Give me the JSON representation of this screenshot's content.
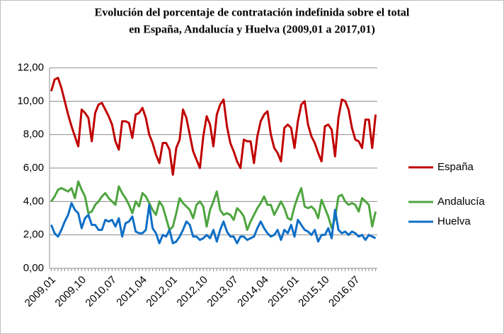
{
  "chart_data": {
    "type": "line",
    "title": [
      "Evolución del porcentaje de contratación indefinida sobre el total",
      "en España, Andalucía y Huelva  (2009,01 a 2017,01)"
    ],
    "categories": [
      "2009,01",
      null,
      null,
      null,
      null,
      null,
      null,
      null,
      null,
      "2009,10",
      null,
      null,
      null,
      null,
      null,
      null,
      null,
      null,
      "2010,07",
      null,
      null,
      null,
      null,
      null,
      null,
      null,
      null,
      "2011,04",
      null,
      null,
      null,
      null,
      null,
      null,
      null,
      null,
      "2012,01",
      null,
      null,
      null,
      null,
      null,
      null,
      null,
      null,
      "2012,10",
      null,
      null,
      null,
      null,
      null,
      null,
      null,
      null,
      "2013,07",
      null,
      null,
      null,
      null,
      null,
      null,
      null,
      null,
      "2014,04",
      null,
      null,
      null,
      null,
      null,
      null,
      null,
      null,
      "2015,01",
      null,
      null,
      null,
      null,
      null,
      null,
      null,
      null,
      "2015,10",
      null,
      null,
      null,
      null,
      null,
      null,
      null,
      null,
      "2016,07",
      null,
      null,
      null,
      null,
      null,
      null
    ],
    "series": [
      {
        "name": "España",
        "color": "#c00000",
        "values": [
          10.6,
          11.3,
          11.4,
          10.8,
          10.0,
          9.2,
          8.5,
          7.9,
          7.3,
          9.5,
          9.3,
          9.0,
          7.6,
          9.3,
          9.8,
          9.9,
          9.5,
          9.1,
          8.6,
          7.6,
          7.1,
          8.8,
          8.8,
          8.7,
          7.8,
          9.2,
          9.3,
          9.6,
          9.0,
          8.0,
          7.5,
          6.8,
          6.3,
          7.5,
          7.5,
          7.1,
          5.6,
          7.2,
          7.7,
          9.5,
          9.0,
          8.0,
          7.0,
          6.5,
          6.0,
          7.9,
          9.1,
          8.6,
          7.3,
          9.2,
          9.8,
          10.1,
          8.5,
          7.5,
          7.0,
          6.4,
          6.0,
          7.7,
          7.6,
          7.6,
          6.3,
          7.9,
          8.8,
          9.2,
          9.4,
          8.0,
          7.2,
          6.9,
          6.4,
          8.4,
          8.6,
          8.4,
          7.2,
          8.8,
          9.8,
          10.0,
          8.6,
          7.9,
          7.5,
          6.9,
          6.4,
          8.5,
          8.6,
          8.3,
          6.7,
          9.0,
          10.1,
          10.0,
          9.5,
          8.4,
          7.7,
          7.6,
          7.2,
          8.9,
          8.9,
          7.2,
          9.2
        ]
      },
      {
        "name": "Andalucía",
        "color": "#4ea53f",
        "values": [
          4.0,
          4.3,
          4.7,
          4.8,
          4.7,
          4.6,
          4.8,
          4.2,
          5.2,
          4.7,
          4.3,
          3.3,
          3.4,
          3.8,
          4.0,
          4.3,
          4.5,
          4.2,
          4.0,
          3.8,
          4.9,
          4.5,
          4.2,
          3.8,
          3.3,
          4.0,
          3.7,
          4.5,
          4.3,
          3.9,
          3.5,
          3.2,
          4.0,
          3.7,
          3.0,
          2.3,
          2.5,
          3.3,
          4.2,
          3.9,
          3.7,
          3.5,
          3.0,
          3.8,
          4.0,
          3.7,
          2.5,
          3.5,
          4.0,
          4.6,
          3.5,
          3.2,
          3.3,
          3.2,
          2.9,
          3.6,
          3.4,
          3.1,
          2.3,
          2.8,
          3.2,
          3.6,
          3.9,
          4.3,
          3.8,
          3.8,
          3.2,
          3.6,
          4.0,
          3.6,
          3.0,
          2.9,
          3.7,
          4.3,
          4.8,
          3.7,
          3.6,
          3.7,
          3.5,
          3.0,
          4.1,
          3.6,
          3.1,
          2.4,
          3.0,
          4.3,
          4.4,
          4.0,
          3.8,
          3.9,
          3.8,
          3.4,
          4.2,
          4.0,
          3.8,
          2.5,
          3.4
        ]
      },
      {
        "name": "Huelva",
        "color": "#0f6fc6",
        "values": [
          2.6,
          2.1,
          1.9,
          2.3,
          2.8,
          3.2,
          3.9,
          3.5,
          3.3,
          2.4,
          3.0,
          3.2,
          2.6,
          2.6,
          2.3,
          2.3,
          2.9,
          2.8,
          2.9,
          2.5,
          3.0,
          1.9,
          2.7,
          2.8,
          3.1,
          2.2,
          2.1,
          2.1,
          2.3,
          3.8,
          2.4,
          2.1,
          1.5,
          2.0,
          1.9,
          2.3,
          1.5,
          1.6,
          1.9,
          2.3,
          2.8,
          2.6,
          1.9,
          1.9,
          1.7,
          1.8,
          2.0,
          1.8,
          2.3,
          1.6,
          2.3,
          2.8,
          2.2,
          1.9,
          1.9,
          1.5,
          1.9,
          1.9,
          1.7,
          1.8,
          1.9,
          2.4,
          2.8,
          2.4,
          2.1,
          1.9,
          2.0,
          2.3,
          1.7,
          2.3,
          2.1,
          2.6,
          1.9,
          2.9,
          2.6,
          2.3,
          2.2,
          2.0,
          2.3,
          1.6,
          2.0,
          2.0,
          2.4,
          1.8,
          3.5,
          2.3,
          2.1,
          2.2,
          2.0,
          2.2,
          2.1,
          1.9,
          2.0,
          1.7,
          2.0,
          1.9,
          1.8
        ]
      }
    ],
    "ylim": [
      0,
      12
    ],
    "yticks": [
      {
        "value": 0,
        "label": "0,00"
      },
      {
        "value": 2,
        "label": "2,00"
      },
      {
        "value": 4,
        "label": "4,00"
      },
      {
        "value": 6,
        "label": "6,00"
      },
      {
        "value": 8,
        "label": "8,00"
      },
      {
        "value": 10,
        "label": "10,00"
      },
      {
        "value": 12,
        "label": "12,00"
      }
    ],
    "grid": true,
    "legend": "right"
  }
}
